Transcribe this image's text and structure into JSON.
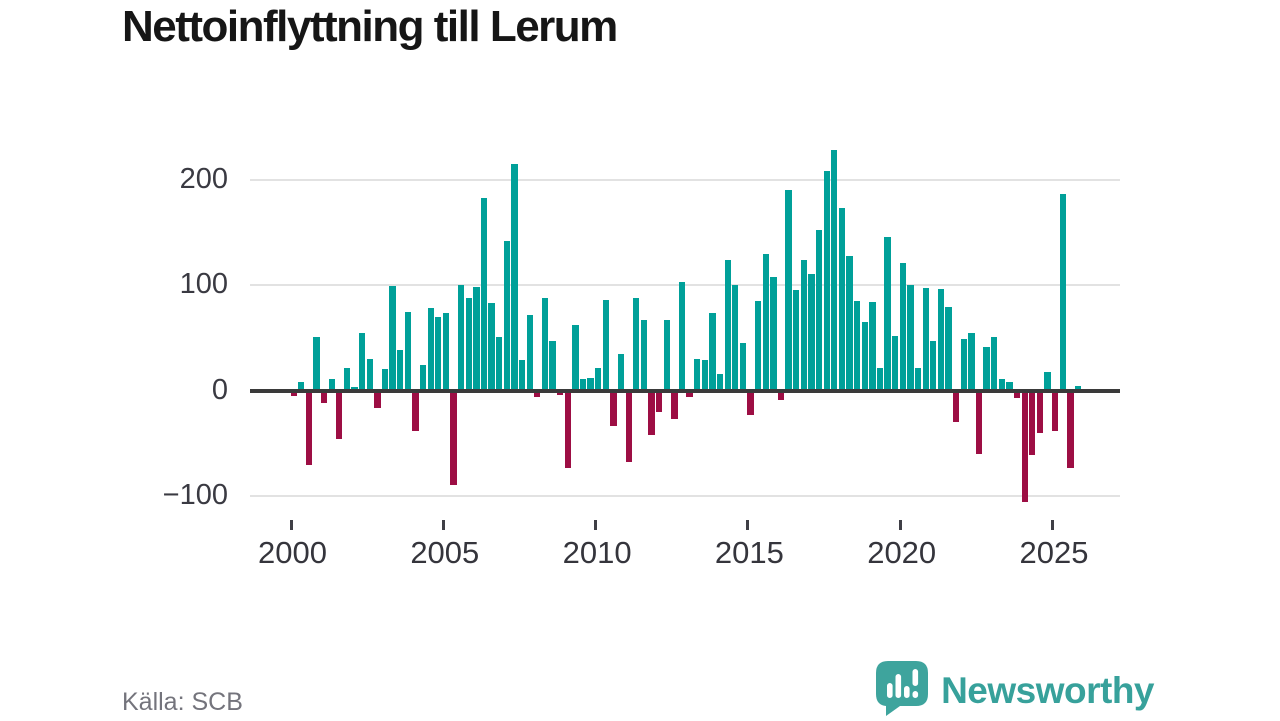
{
  "title": "Nettoinflyttning till Lerum",
  "source": "Källa: SCB",
  "branding": {
    "name": "Newsworthy",
    "icon": "bar-chart-speech-bubble-icon",
    "color": "#3ea49d"
  },
  "chart_data": {
    "type": "bar",
    "title": "Nettoinflyttning till Lerum",
    "x_unit": "quarter",
    "start_year": 2000,
    "values": [
      -5,
      8,
      -71,
      51,
      -12,
      11,
      -46,
      21,
      3,
      55,
      30,
      -17,
      20,
      99,
      38,
      75,
      -38,
      24,
      78,
      70,
      74,
      -90,
      100,
      88,
      98,
      183,
      83,
      51,
      142,
      215,
      29,
      72,
      -6,
      88,
      47,
      -4,
      -74,
      62,
      11,
      12,
      21,
      86,
      -34,
      35,
      -68,
      88,
      67,
      -42,
      -20,
      67,
      -27,
      103,
      -6,
      30,
      29,
      74,
      16,
      124,
      100,
      45,
      -23,
      85,
      130,
      108,
      -9,
      190,
      95,
      124,
      111,
      152,
      208,
      228,
      173,
      128,
      85,
      65,
      84,
      21,
      146,
      52,
      121,
      100,
      21,
      97,
      47,
      96,
      79,
      -30,
      49,
      55,
      -60,
      41,
      51,
      11,
      8,
      -7,
      -106,
      -61,
      -40,
      18,
      -38,
      187,
      -74,
      4
    ],
    "x_ticks": [
      2000,
      2005,
      2010,
      2015,
      2020,
      2025
    ],
    "x_tick_labels": [
      "2000",
      "2005",
      "2010",
      "2015",
      "2020",
      "2025"
    ],
    "y_ticks": [
      200,
      100,
      0,
      -100
    ],
    "y_tick_labels": [
      "200",
      "100",
      "0",
      "−100"
    ],
    "ylim": [
      -120,
      240
    ],
    "grid": true,
    "legend": "none",
    "positive_color": "#00a099",
    "negative_color": "#9d0e44"
  }
}
